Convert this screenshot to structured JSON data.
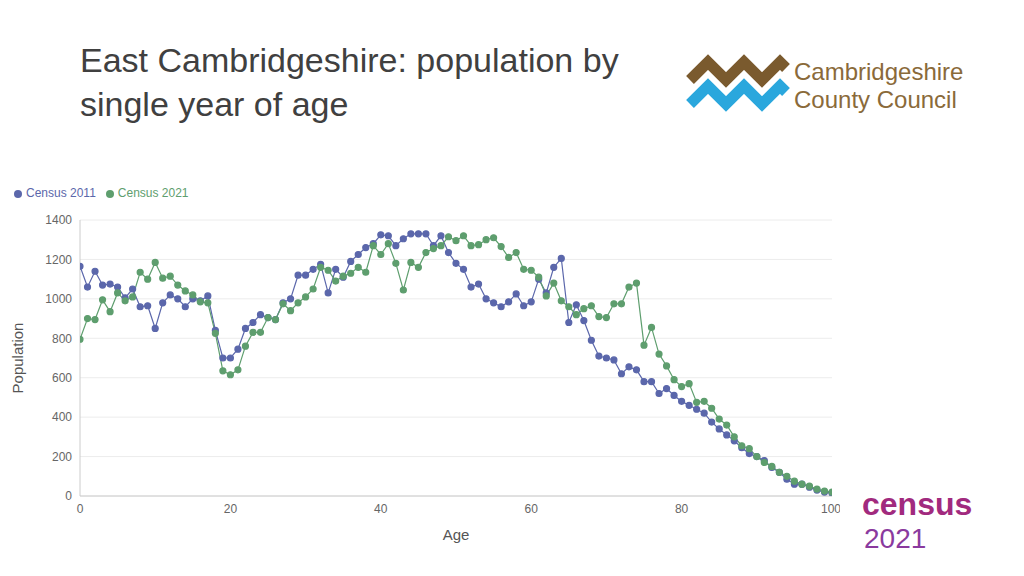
{
  "chart_data": {
    "type": "line",
    "title": "East Cambridgeshire: population by single year of age",
    "x_label": "Age",
    "y_label": "Population",
    "x": [
      0,
      1,
      2,
      3,
      4,
      5,
      6,
      7,
      8,
      9,
      10,
      11,
      12,
      13,
      14,
      15,
      16,
      17,
      18,
      19,
      20,
      21,
      22,
      23,
      24,
      25,
      26,
      27,
      28,
      29,
      30,
      31,
      32,
      33,
      34,
      35,
      36,
      37,
      38,
      39,
      40,
      41,
      42,
      43,
      44,
      45,
      46,
      47,
      48,
      49,
      50,
      51,
      52,
      53,
      54,
      55,
      56,
      57,
      58,
      59,
      60,
      61,
      62,
      63,
      64,
      65,
      66,
      67,
      68,
      69,
      70,
      71,
      72,
      73,
      74,
      75,
      76,
      77,
      78,
      79,
      80,
      81,
      82,
      83,
      84,
      85,
      86,
      87,
      88,
      89,
      90,
      91,
      92,
      93,
      94,
      95,
      96,
      97,
      98,
      99,
      100
    ],
    "series": [
      {
        "name": "Census 2011",
        "color": "#5b67ab",
        "marker": "circle",
        "values": [
          1165,
          1060,
          1140,
          1070,
          1075,
          1060,
          1005,
          1050,
          960,
          965,
          850,
          980,
          1020,
          1000,
          960,
          1000,
          990,
          1015,
          840,
          700,
          700,
          745,
          850,
          880,
          920,
          905,
          895,
          980,
          1000,
          1120,
          1120,
          1150,
          1175,
          1030,
          1150,
          1110,
          1190,
          1225,
          1260,
          1280,
          1325,
          1320,
          1270,
          1305,
          1330,
          1330,
          1330,
          1270,
          1320,
          1235,
          1180,
          1150,
          1060,
          1075,
          1000,
          980,
          960,
          985,
          1025,
          965,
          985,
          1100,
          1030,
          1160,
          1205,
          880,
          970,
          890,
          790,
          710,
          700,
          690,
          620,
          655,
          640,
          580,
          580,
          520,
          545,
          510,
          480,
          460,
          440,
          420,
          375,
          340,
          310,
          280,
          245,
          215,
          200,
          180,
          145,
          120,
          85,
          60,
          60,
          45,
          30,
          20,
          15
        ]
      },
      {
        "name": "Census 2021",
        "color": "#5e9e6e",
        "marker": "circle",
        "values": [
          795,
          900,
          895,
          995,
          935,
          1030,
          990,
          1010,
          1135,
          1100,
          1185,
          1105,
          1115,
          1070,
          1040,
          1020,
          985,
          980,
          825,
          635,
          615,
          640,
          760,
          830,
          830,
          905,
          895,
          975,
          940,
          980,
          1010,
          1050,
          1160,
          1145,
          1090,
          1115,
          1130,
          1160,
          1135,
          1270,
          1225,
          1280,
          1180,
          1045,
          1185,
          1160,
          1235,
          1255,
          1270,
          1315,
          1295,
          1320,
          1270,
          1275,
          1300,
          1310,
          1265,
          1210,
          1235,
          1150,
          1145,
          1110,
          1015,
          1080,
          990,
          960,
          920,
          950,
          965,
          910,
          905,
          975,
          975,
          1060,
          1080,
          765,
          855,
          720,
          660,
          590,
          555,
          570,
          475,
          480,
          445,
          390,
          360,
          300,
          255,
          240,
          200,
          170,
          150,
          120,
          100,
          75,
          60,
          50,
          35,
          25,
          20
        ]
      }
    ],
    "xlim": [
      0,
      100
    ],
    "xticks": [
      0,
      20,
      40,
      60,
      80,
      100
    ],
    "ylim": [
      0,
      1400
    ],
    "yticks": [
      0,
      200,
      400,
      600,
      800,
      1000,
      1200,
      1400
    ],
    "grid": true,
    "legend": "top-left",
    "annotations": [
      "Cambridgeshire",
      "County Council",
      "census",
      "2021"
    ]
  }
}
